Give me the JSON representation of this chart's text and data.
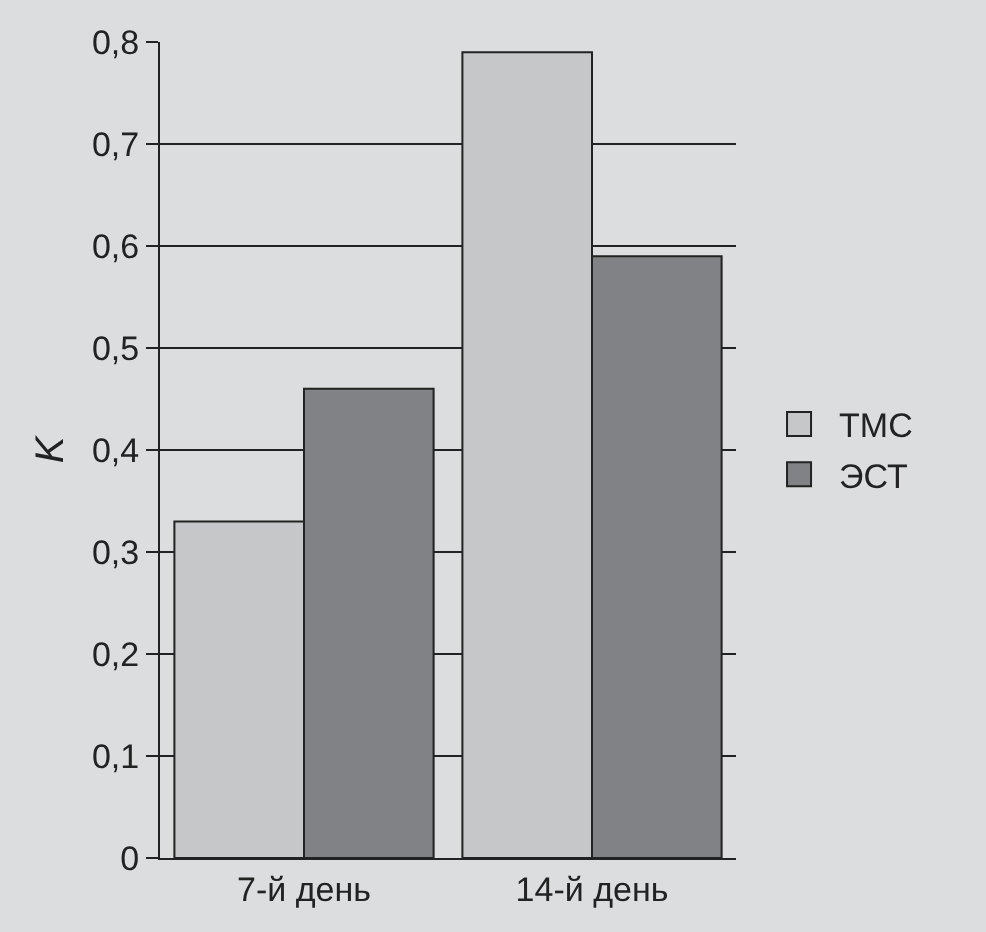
{
  "chart_data": {
    "type": "bar",
    "ylabel": "K",
    "categories": [
      "7-й день",
      "14-й день"
    ],
    "series": [
      {
        "name": "ТМС",
        "color": "#c6c7c9",
        "values": [
          0.33,
          0.79
        ]
      },
      {
        "name": "ЭСТ",
        "color": "#818285",
        "values": [
          0.46,
          0.59
        ]
      }
    ],
    "ylim": [
      0,
      0.8
    ],
    "yticks": [
      0,
      {
        "value": 0.1,
        "label": "0,1"
      },
      {
        "value": 0.2,
        "label": "0,2"
      },
      {
        "value": 0.3,
        "label": "0,3"
      },
      {
        "value": 0.4,
        "label": "0,4"
      },
      {
        "value": 0.5,
        "label": "0,5"
      },
      {
        "value": 0.6,
        "label": "0,6"
      },
      {
        "value": 0.7,
        "label": "0,7"
      },
      {
        "value": 0.8,
        "label": "0,8"
      }
    ],
    "grid": "y",
    "legend": "right"
  }
}
